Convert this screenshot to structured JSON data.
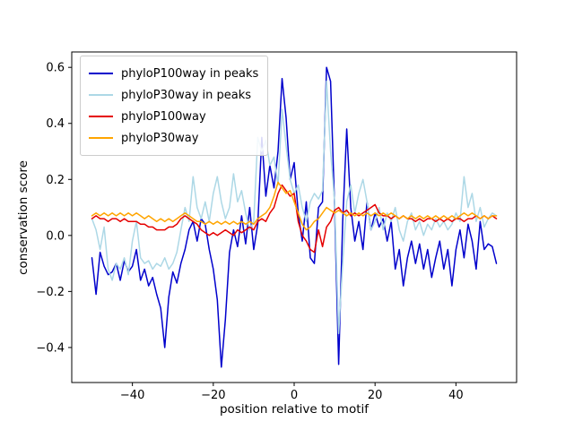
{
  "figure": {
    "background": "#ffffff"
  },
  "chart_data": {
    "type": "line",
    "title": "",
    "xlabel": "position relative to motif",
    "ylabel": "conservation score",
    "xlim": [
      -55,
      55
    ],
    "ylim": [
      -0.525,
      0.655
    ],
    "grid": false,
    "legend_position": "upper left",
    "x_start": -50,
    "x_step": 1,
    "xticks": {
      "values": [
        -40,
        -20,
        0,
        20,
        40
      ],
      "labels": [
        "−40",
        "−20",
        "0",
        "20",
        "40"
      ]
    },
    "yticks": {
      "values": [
        -0.4,
        -0.2,
        0,
        0.2,
        0.4,
        0.6
      ],
      "labels": [
        "−0.4",
        "−0.2",
        "0.0",
        "0.2",
        "0.4",
        "0.6"
      ]
    },
    "series": [
      {
        "name": "phyloP100way in peaks",
        "color": "#0000cc",
        "values": [
          -0.08,
          -0.21,
          -0.06,
          -0.11,
          -0.14,
          -0.13,
          -0.1,
          -0.16,
          -0.09,
          -0.13,
          -0.11,
          -0.05,
          -0.16,
          -0.12,
          -0.18,
          -0.15,
          -0.21,
          -0.26,
          -0.4,
          -0.22,
          -0.13,
          -0.17,
          -0.1,
          -0.05,
          0.02,
          0.05,
          -0.02,
          0.06,
          0.04,
          -0.05,
          -0.12,
          -0.23,
          -0.47,
          -0.3,
          -0.06,
          0.02,
          -0.04,
          0.07,
          -0.03,
          0.1,
          -0.05,
          0.04,
          0.35,
          0.14,
          0.25,
          0.17,
          0.3,
          0.56,
          0.42,
          0.2,
          0.26,
          0.08,
          -0.02,
          0.12,
          -0.08,
          -0.1,
          0.1,
          0.12,
          0.6,
          0.55,
          0.1,
          -0.46,
          0.05,
          0.38,
          0.1,
          -0.02,
          0.05,
          -0.05,
          0.12,
          0.02,
          0.08,
          0.03,
          0.06,
          -0.02,
          0.05,
          -0.12,
          -0.05,
          -0.18,
          -0.08,
          -0.02,
          -0.1,
          -0.03,
          -0.12,
          -0.05,
          -0.15,
          -0.08,
          -0.02,
          -0.12,
          -0.05,
          -0.18,
          -0.05,
          0.02,
          -0.08,
          0.04,
          -0.02,
          -0.12,
          0.05,
          -0.05,
          -0.03,
          -0.04,
          -0.1
        ]
      },
      {
        "name": "phyloP30way in peaks",
        "color": "#add8e6",
        "values": [
          0.06,
          0.02,
          -0.05,
          0.03,
          -0.12,
          -0.16,
          -0.1,
          -0.12,
          -0.08,
          -0.14,
          -0.02,
          0.05,
          -0.08,
          -0.1,
          -0.09,
          -0.12,
          -0.1,
          -0.11,
          -0.08,
          -0.12,
          -0.1,
          -0.06,
          0.02,
          0.1,
          0.05,
          0.21,
          0.1,
          0.06,
          0.12,
          0.05,
          0.15,
          0.21,
          0.12,
          0.06,
          0.1,
          0.22,
          0.12,
          0.16,
          0.08,
          0.02,
          0.05,
          0.35,
          0.3,
          0.34,
          0.25,
          0.28,
          0.18,
          0.45,
          0.32,
          0.2,
          0.15,
          0.18,
          0.1,
          0.05,
          0.12,
          0.15,
          0.13,
          0.16,
          0.55,
          0.3,
          0.12,
          -0.35,
          -0.1,
          0.12,
          0.18,
          0.08,
          0.15,
          0.2,
          0.12,
          0.02,
          0.05,
          0.1,
          0.02,
          0.08,
          0.05,
          0.1,
          0.02,
          -0.02,
          0.05,
          0.08,
          0.02,
          0.05,
          0.0,
          0.04,
          0.02,
          0.06,
          0.03,
          0.05,
          0.02,
          0.04,
          0.08,
          0.05,
          0.21,
          0.1,
          0.15,
          0.05,
          0.1,
          0.03,
          0.06,
          0.08,
          0.07
        ]
      },
      {
        "name": "phyloP100way",
        "color": "#e50000",
        "values": [
          0.06,
          0.07,
          0.06,
          0.06,
          0.05,
          0.06,
          0.06,
          0.05,
          0.06,
          0.05,
          0.05,
          0.05,
          0.04,
          0.04,
          0.03,
          0.03,
          0.02,
          0.02,
          0.02,
          0.03,
          0.03,
          0.04,
          0.06,
          0.07,
          0.06,
          0.05,
          0.04,
          0.02,
          0.01,
          0.0,
          0.01,
          0.0,
          0.01,
          0.02,
          0.01,
          0.0,
          0.02,
          0.01,
          0.02,
          0.03,
          0.02,
          0.05,
          0.06,
          0.05,
          0.08,
          0.1,
          0.15,
          0.18,
          0.16,
          0.14,
          0.15,
          0.05,
          0.0,
          -0.02,
          -0.05,
          -0.06,
          0.02,
          -0.04,
          0.03,
          0.05,
          0.09,
          0.1,
          0.08,
          0.09,
          0.07,
          0.08,
          0.07,
          0.08,
          0.09,
          0.1,
          0.11,
          0.08,
          0.07,
          0.07,
          0.06,
          0.07,
          0.06,
          0.07,
          0.06,
          0.06,
          0.05,
          0.06,
          0.05,
          0.06,
          0.06,
          0.05,
          0.06,
          0.05,
          0.06,
          0.05,
          0.06,
          0.06,
          0.05,
          0.06,
          0.06,
          0.07,
          0.06,
          0.07,
          0.06,
          0.07,
          0.06
        ]
      },
      {
        "name": "phyloP30way",
        "color": "#ffa500",
        "values": [
          0.07,
          0.08,
          0.07,
          0.08,
          0.07,
          0.08,
          0.07,
          0.08,
          0.07,
          0.08,
          0.07,
          0.08,
          0.07,
          0.06,
          0.07,
          0.06,
          0.05,
          0.06,
          0.05,
          0.06,
          0.05,
          0.06,
          0.07,
          0.08,
          0.07,
          0.06,
          0.05,
          0.05,
          0.04,
          0.05,
          0.04,
          0.05,
          0.04,
          0.05,
          0.04,
          0.05,
          0.04,
          0.05,
          0.04,
          0.05,
          0.04,
          0.06,
          0.07,
          0.08,
          0.1,
          0.14,
          0.19,
          0.17,
          0.15,
          0.16,
          0.12,
          0.08,
          0.04,
          0.02,
          0.03,
          0.05,
          0.06,
          0.08,
          0.1,
          0.09,
          0.08,
          0.09,
          0.08,
          0.07,
          0.08,
          0.07,
          0.08,
          0.07,
          0.08,
          0.07,
          0.08,
          0.07,
          0.08,
          0.07,
          0.08,
          0.07,
          0.06,
          0.07,
          0.06,
          0.07,
          0.06,
          0.07,
          0.06,
          0.07,
          0.06,
          0.07,
          0.06,
          0.07,
          0.06,
          0.07,
          0.06,
          0.07,
          0.08,
          0.07,
          0.08,
          0.07,
          0.06,
          0.07,
          0.06,
          0.07,
          0.07
        ]
      }
    ]
  }
}
